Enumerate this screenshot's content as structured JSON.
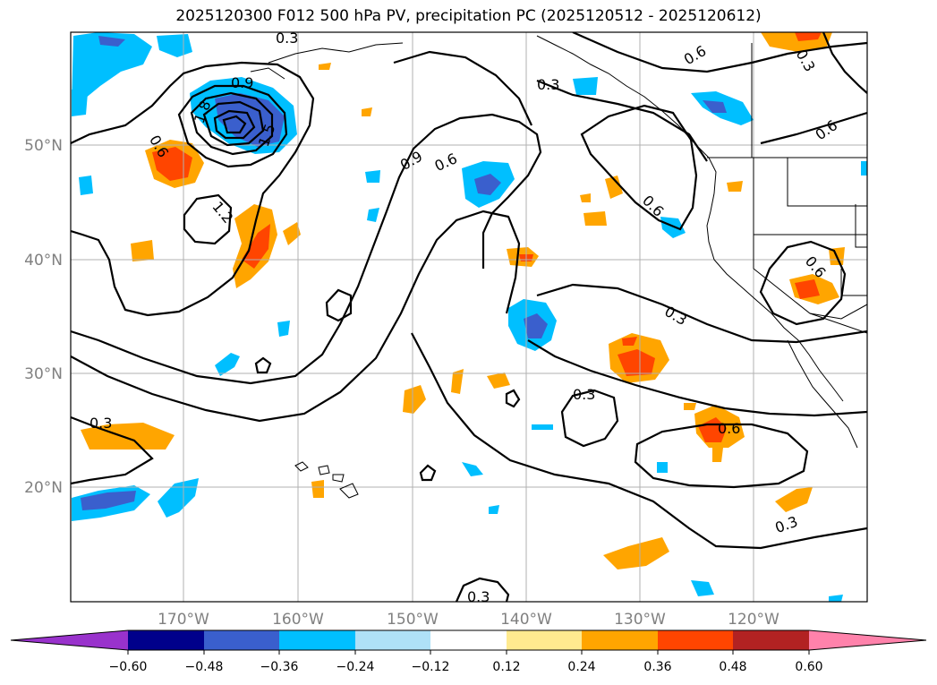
{
  "title": "2025120300 F012 500 hPa PV, precipitation PC (2025120512 - 2025120612)",
  "map": {
    "lat_labels": [
      "50°N",
      "40°N",
      "30°N",
      "20°N"
    ],
    "lon_labels": [
      "170°W",
      "160°W",
      "150°W",
      "140°W",
      "130°W",
      "120°W"
    ],
    "contour_labels": [
      "0.3",
      "0.6",
      "0.9",
      "1.2",
      "1.5",
      "1.8"
    ]
  },
  "colorbar": {
    "tick_labels": [
      "−0.60",
      "−0.48",
      "−0.36",
      "−0.24",
      "−0.12",
      "0.12",
      "0.24",
      "0.36",
      "0.48",
      "0.60"
    ],
    "colors": [
      "#9932cc",
      "#00008b",
      "#3a5fcd",
      "#00bfff",
      "#afe1f7",
      "#ffffff",
      "#ffea8f",
      "#ffa500",
      "#ff4500",
      "#b22222",
      "#ff82ab"
    ]
  }
}
